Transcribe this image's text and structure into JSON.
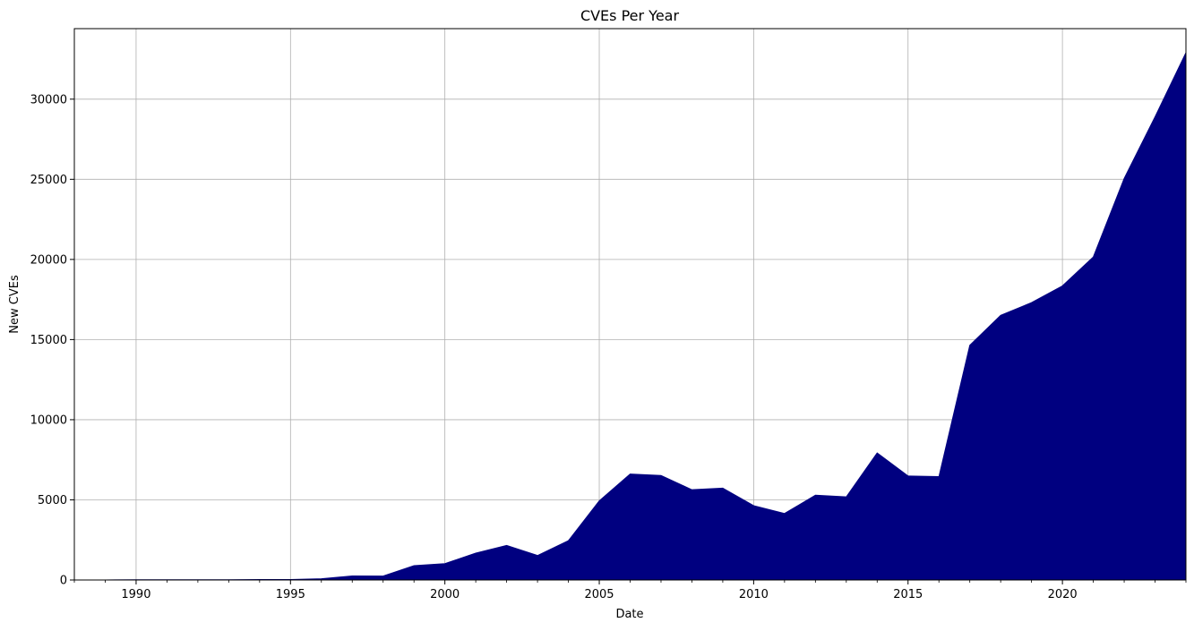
{
  "chart_data": {
    "type": "area",
    "title": "CVEs Per Year",
    "xlabel": "Date",
    "ylabel": "New CVEs",
    "xlim": [
      1988,
      2024
    ],
    "ylim": [
      0,
      34400
    ],
    "xticks": [
      1990,
      1995,
      2000,
      2005,
      2010,
      2015,
      2020
    ],
    "yticks": [
      0,
      5000,
      10000,
      15000,
      20000,
      25000,
      30000
    ],
    "grid": true,
    "fill_color": "#000080",
    "x": [
      1988,
      1989,
      1990,
      1991,
      1992,
      1993,
      1994,
      1995,
      1996,
      1997,
      1998,
      1999,
      2000,
      2001,
      2002,
      2003,
      2004,
      2005,
      2006,
      2007,
      2008,
      2009,
      2010,
      2011,
      2012,
      2013,
      2014,
      2015,
      2016,
      2017,
      2018,
      2019,
      2020,
      2021,
      2022,
      2023,
      2024
    ],
    "values": [
      2,
      3,
      11,
      15,
      13,
      13,
      25,
      25,
      75,
      252,
      246,
      894,
      1020,
      1677,
      2156,
      1527,
      2451,
      4935,
      6610,
      6520,
      5632,
      5732,
      4639,
      4150,
      5288,
      5187,
      7928,
      6487,
      6447,
      14643,
      16510,
      17306,
      18350,
      20155,
      25059,
      28900,
      32900
    ]
  }
}
